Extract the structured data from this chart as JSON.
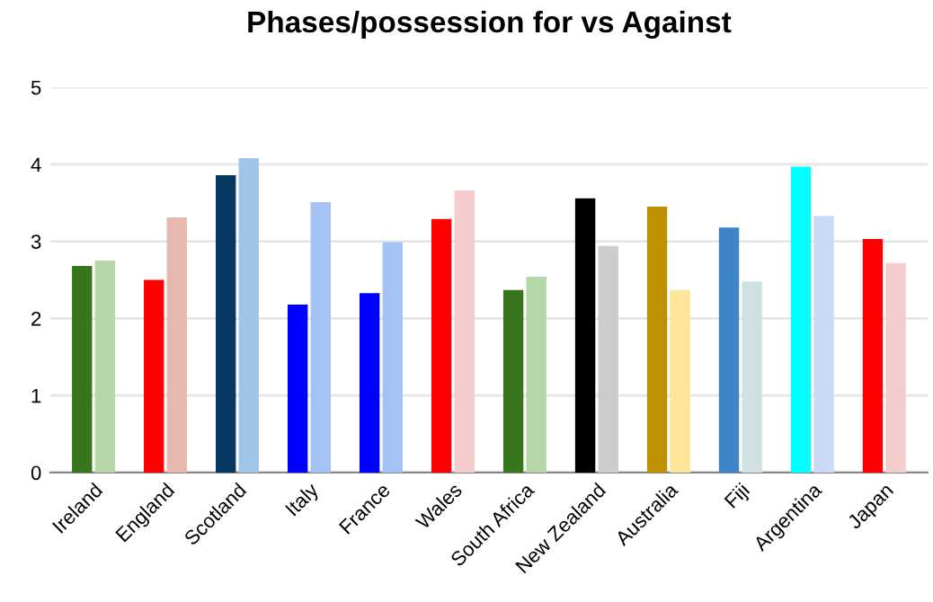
{
  "chart_data": {
    "type": "bar",
    "title": "Phases/possession for vs Against",
    "categories": [
      "Ireland",
      "England",
      "Scotland",
      "Italy",
      "France",
      "Wales",
      "South Africa",
      "New Zealand",
      "Australia",
      "Fiji",
      "Argentina",
      "Japan"
    ],
    "series": [
      {
        "colors": [
          "#38761d",
          "#ff0000",
          "#073763",
          "#0000ff",
          "#0000ff",
          "#ff0000",
          "#38761d",
          "#000000",
          "#bf9000",
          "#3d85c6",
          "#00ffff",
          "#ff0000"
        ],
        "values": [
          2.68,
          2.5,
          3.86,
          2.18,
          2.33,
          3.29,
          2.37,
          3.56,
          3.45,
          3.18,
          3.97,
          3.03
        ]
      },
      {
        "colors": [
          "#b6d7a8",
          "#e6b8af",
          "#9fc5e8",
          "#a4c2f4",
          "#a4c2f4",
          "#f4cccc",
          "#b6d7a8",
          "#cccccc",
          "#ffe599",
          "#d0e0e3",
          "#c9daf8",
          "#f4cccc"
        ],
        "values": [
          2.75,
          3.31,
          4.08,
          3.51,
          2.99,
          3.66,
          2.54,
          2.94,
          2.37,
          2.48,
          3.33,
          2.72
        ]
      }
    ],
    "ylim": [
      0,
      5
    ],
    "yticks": [
      0,
      1,
      2,
      3,
      4,
      5
    ],
    "grid": "y",
    "legend": false
  }
}
